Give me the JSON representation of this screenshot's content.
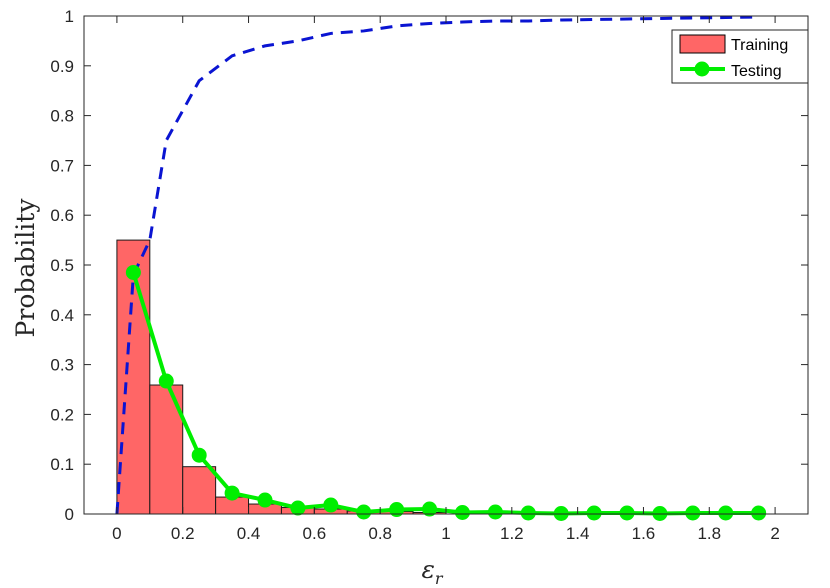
{
  "chart_data": {
    "type": "bar",
    "xlabel": "ε_r",
    "xlabel_main": "ε",
    "xlabel_sub": "r",
    "ylabel": "Probability",
    "xlim": [
      -0.1,
      2.1
    ],
    "ylim": [
      0,
      1
    ],
    "xticks": [
      0,
      0.2,
      0.4,
      0.6,
      0.8,
      1,
      1.2,
      1.4,
      1.6,
      1.8,
      2
    ],
    "xtick_labels": [
      "0",
      "0.2",
      "0.4",
      "0.6",
      "0.8",
      "1",
      "1.2",
      "1.4",
      "1.6",
      "1.8",
      "2"
    ],
    "yticks": [
      0,
      0.1,
      0.2,
      0.3,
      0.4,
      0.5,
      0.6,
      0.7,
      0.8,
      0.9,
      1
    ],
    "ytick_labels": [
      "0",
      "0.1",
      "0.2",
      "0.3",
      "0.4",
      "0.5",
      "0.6",
      "0.7",
      "0.8",
      "0.9",
      "1"
    ],
    "grid": false,
    "legend_position": "top-right",
    "training": {
      "name": "Training",
      "bin_edges": [
        0,
        0.1,
        0.2,
        0.3,
        0.4,
        0.5,
        0.6,
        0.7,
        0.8,
        0.9,
        1.0
      ],
      "values": [
        0.55,
        0.259,
        0.095,
        0.034,
        0.02,
        0.013,
        0.01,
        0.006,
        0.005,
        0.003
      ],
      "color": "#ff6666"
    },
    "testing": {
      "name": "Testing",
      "x": [
        0.05,
        0.15,
        0.25,
        0.35,
        0.45,
        0.55,
        0.65,
        0.75,
        0.85,
        0.95,
        1.05,
        1.15,
        1.25,
        1.35,
        1.45,
        1.55,
        1.65,
        1.75,
        1.85,
        1.95
      ],
      "y": [
        0.485,
        0.267,
        0.118,
        0.042,
        0.028,
        0.012,
        0.018,
        0.004,
        0.009,
        0.01,
        0.003,
        0.004,
        0.002,
        0.001,
        0.002,
        0.002,
        0.001,
        0.002,
        0.002,
        0.002
      ],
      "color": "#00ee00"
    },
    "cdf": {
      "x": [
        0,
        0.05,
        0.1,
        0.15,
        0.25,
        0.35,
        0.45,
        0.55,
        0.65,
        0.75,
        0.85,
        0.95,
        1.05,
        1.15,
        1.25,
        1.35,
        1.45,
        1.55,
        1.65,
        1.75,
        1.85,
        1.95
      ],
      "y": [
        0,
        0.48,
        0.55,
        0.75,
        0.87,
        0.92,
        0.94,
        0.95,
        0.965,
        0.97,
        0.98,
        0.985,
        0.988,
        0.99,
        0.99,
        0.992,
        0.993,
        0.994,
        0.995,
        0.996,
        0.997,
        0.998
      ],
      "color": "#0a14d2",
      "style": "dashed"
    }
  }
}
